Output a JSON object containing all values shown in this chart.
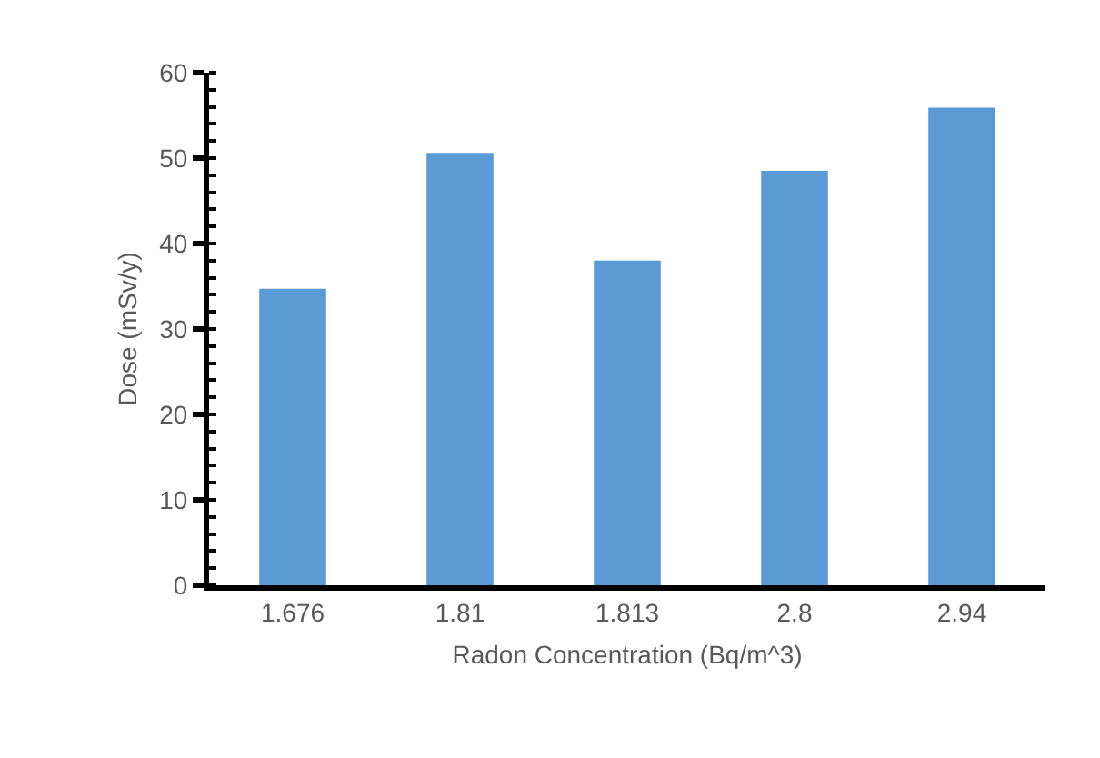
{
  "chart_data": {
    "type": "bar",
    "xlabel": "Radon Concentration (Bq/m^3)",
    "ylabel": "Dose (mSv/y)",
    "categories": [
      "1.676",
      "1.81",
      "1.813",
      "2.8",
      "2.94"
    ],
    "values": [
      34.7,
      50.6,
      38.0,
      48.5,
      55.9
    ],
    "color": "#5b9bd5",
    "ylim": [
      0,
      60
    ],
    "yticks": [
      0,
      10,
      20,
      30,
      40,
      50,
      60
    ],
    "grid": false,
    "legend": false
  }
}
